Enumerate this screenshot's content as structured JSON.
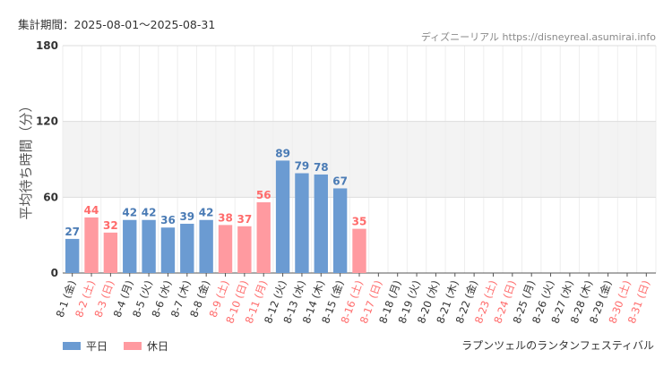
{
  "period_label": "集計期間：2025-08-01～2025-08-31",
  "source": "ディズニーリアル https://disneyreal.asumirai.info",
  "footer_title": "ラプンツェルのランタンフェスティバル",
  "colors": {
    "weekday": "#6b9bd2",
    "holiday": "#ff9aa0",
    "holiday_text": "#ff6b6b",
    "band": "#f3f3f3"
  },
  "chart_data": {
    "type": "bar",
    "ylabel": "平均待ち時間（分）",
    "ylim": [
      0,
      180
    ],
    "yticks": [
      0,
      60,
      120,
      180
    ],
    "shaded_band": [
      60,
      120
    ],
    "categories": [
      "8-1 (金)",
      "8-2 (土)",
      "8-3 (日)",
      "8-4 (月)",
      "8-5 (火)",
      "8-6 (水)",
      "8-7 (木)",
      "8-8 (金)",
      "8-9 (土)",
      "8-10 (日)",
      "8-11 (月)",
      "8-12 (火)",
      "8-13 (水)",
      "8-14 (木)",
      "8-15 (金)",
      "8-16 (土)",
      "8-17 (日)",
      "8-18 (月)",
      "8-19 (火)",
      "8-20 (水)",
      "8-21 (木)",
      "8-22 (金)",
      "8-23 (土)",
      "8-24 (日)",
      "8-25 (月)",
      "8-26 (火)",
      "8-27 (水)",
      "8-28 (木)",
      "8-29 (金)",
      "8-30 (土)",
      "8-31 (日)"
    ],
    "holiday": [
      false,
      true,
      true,
      false,
      false,
      false,
      false,
      false,
      true,
      true,
      true,
      false,
      false,
      false,
      false,
      true,
      true,
      false,
      false,
      false,
      false,
      false,
      true,
      true,
      false,
      false,
      false,
      false,
      false,
      true,
      true
    ],
    "values": [
      27,
      44,
      32,
      42,
      42,
      36,
      39,
      42,
      38,
      37,
      56,
      89,
      79,
      78,
      67,
      35,
      null,
      null,
      null,
      null,
      null,
      null,
      null,
      null,
      null,
      null,
      null,
      null,
      null,
      null,
      null
    ],
    "legend": [
      {
        "name": "平日",
        "key": "weekday"
      },
      {
        "name": "休日",
        "key": "holiday"
      }
    ]
  }
}
